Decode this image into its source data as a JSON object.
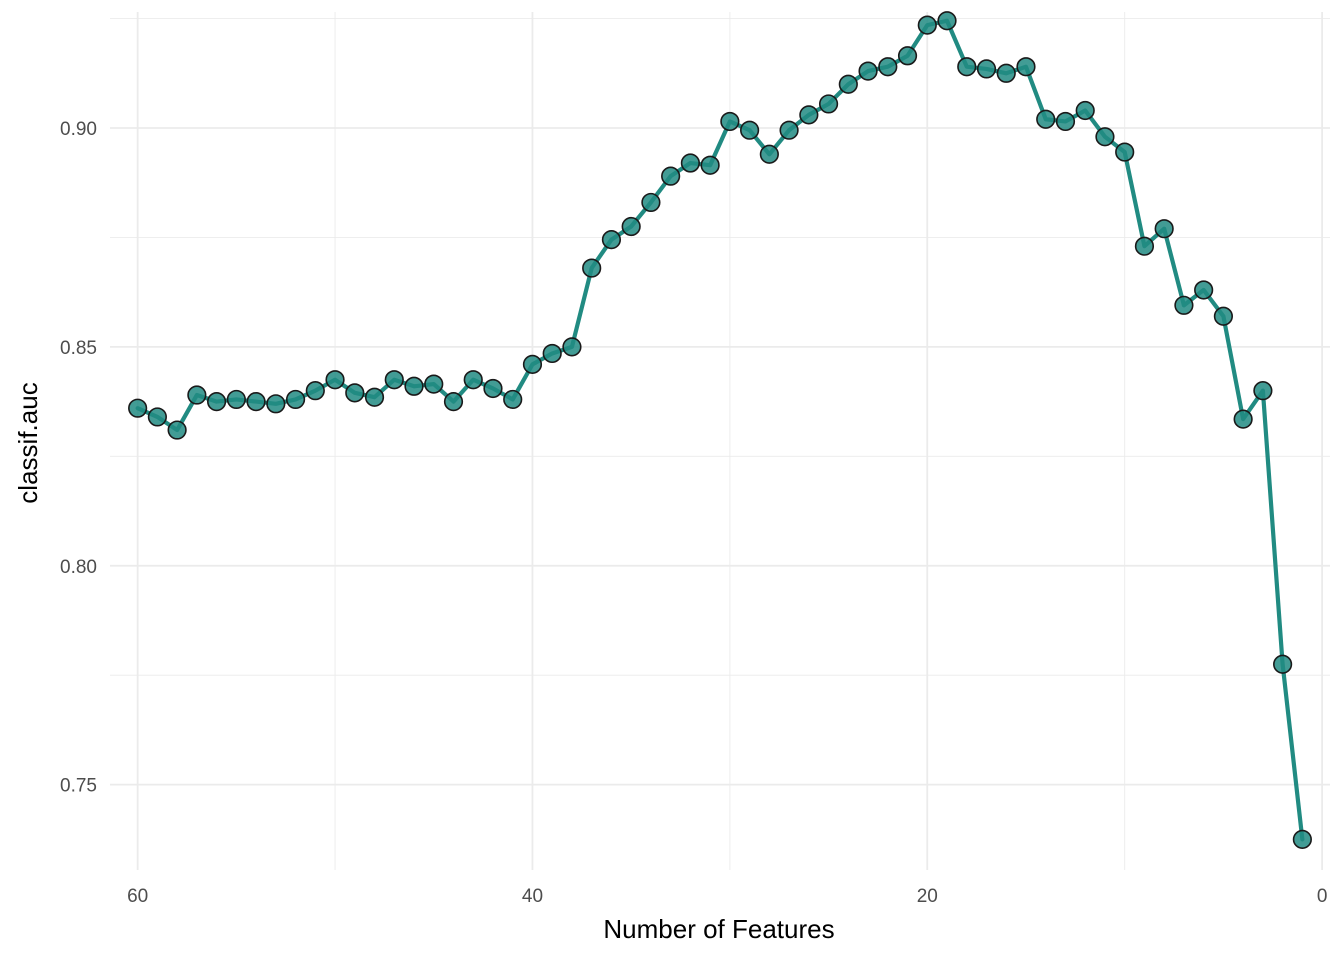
{
  "chart_data": {
    "type": "line",
    "xlabel": "Number of Features",
    "ylabel": "classif.auc",
    "x_reversed": true,
    "xlim": [
      61.4,
      -0.4
    ],
    "ylim": [
      0.7305,
      0.9265
    ],
    "x_ticks": [
      60,
      40,
      20,
      0
    ],
    "x_tick_labels": [
      "60",
      "40",
      "20",
      "0"
    ],
    "y_ticks": [
      0.75,
      0.8,
      0.85,
      0.9
    ],
    "y_tick_labels": [
      "0.75",
      "0.80",
      "0.85",
      "0.90"
    ],
    "grid": true,
    "legend": "none",
    "colors": {
      "line": "#218b82",
      "point_fill": "#218b82",
      "point_stroke": "#1a1a1a",
      "grid": "#ebebeb"
    },
    "series": [
      {
        "x": [
          60,
          59,
          58,
          57,
          56,
          55,
          54,
          53,
          52,
          51,
          50,
          49,
          48,
          47,
          46,
          45,
          44,
          43,
          42,
          41,
          40,
          39,
          38,
          37,
          36,
          35,
          34,
          33,
          32,
          31,
          30,
          29,
          28,
          27,
          26,
          25,
          24,
          23,
          22,
          21,
          20,
          19,
          18,
          17,
          16,
          15,
          14,
          13,
          12,
          11,
          10,
          9,
          8,
          7,
          6,
          5,
          4,
          3,
          2,
          1
        ],
        "y": [
          0.836,
          0.834,
          0.831,
          0.839,
          0.8375,
          0.838,
          0.8375,
          0.837,
          0.838,
          0.84,
          0.8425,
          0.8395,
          0.8385,
          0.8425,
          0.841,
          0.8415,
          0.8375,
          0.8425,
          0.8405,
          0.838,
          0.846,
          0.8485,
          0.85,
          0.868,
          0.8745,
          0.8775,
          0.883,
          0.889,
          0.892,
          0.8915,
          0.9015,
          0.8995,
          0.894,
          0.8995,
          0.903,
          0.9055,
          0.91,
          0.913,
          0.914,
          0.9165,
          0.9235,
          0.9245,
          0.914,
          0.9135,
          0.9125,
          0.914,
          0.902,
          0.9015,
          0.904,
          0.898,
          0.8945,
          0.873,
          0.877,
          0.8595,
          0.863,
          0.857,
          0.8335,
          0.84,
          0.7775,
          0.7375
        ]
      }
    ]
  }
}
